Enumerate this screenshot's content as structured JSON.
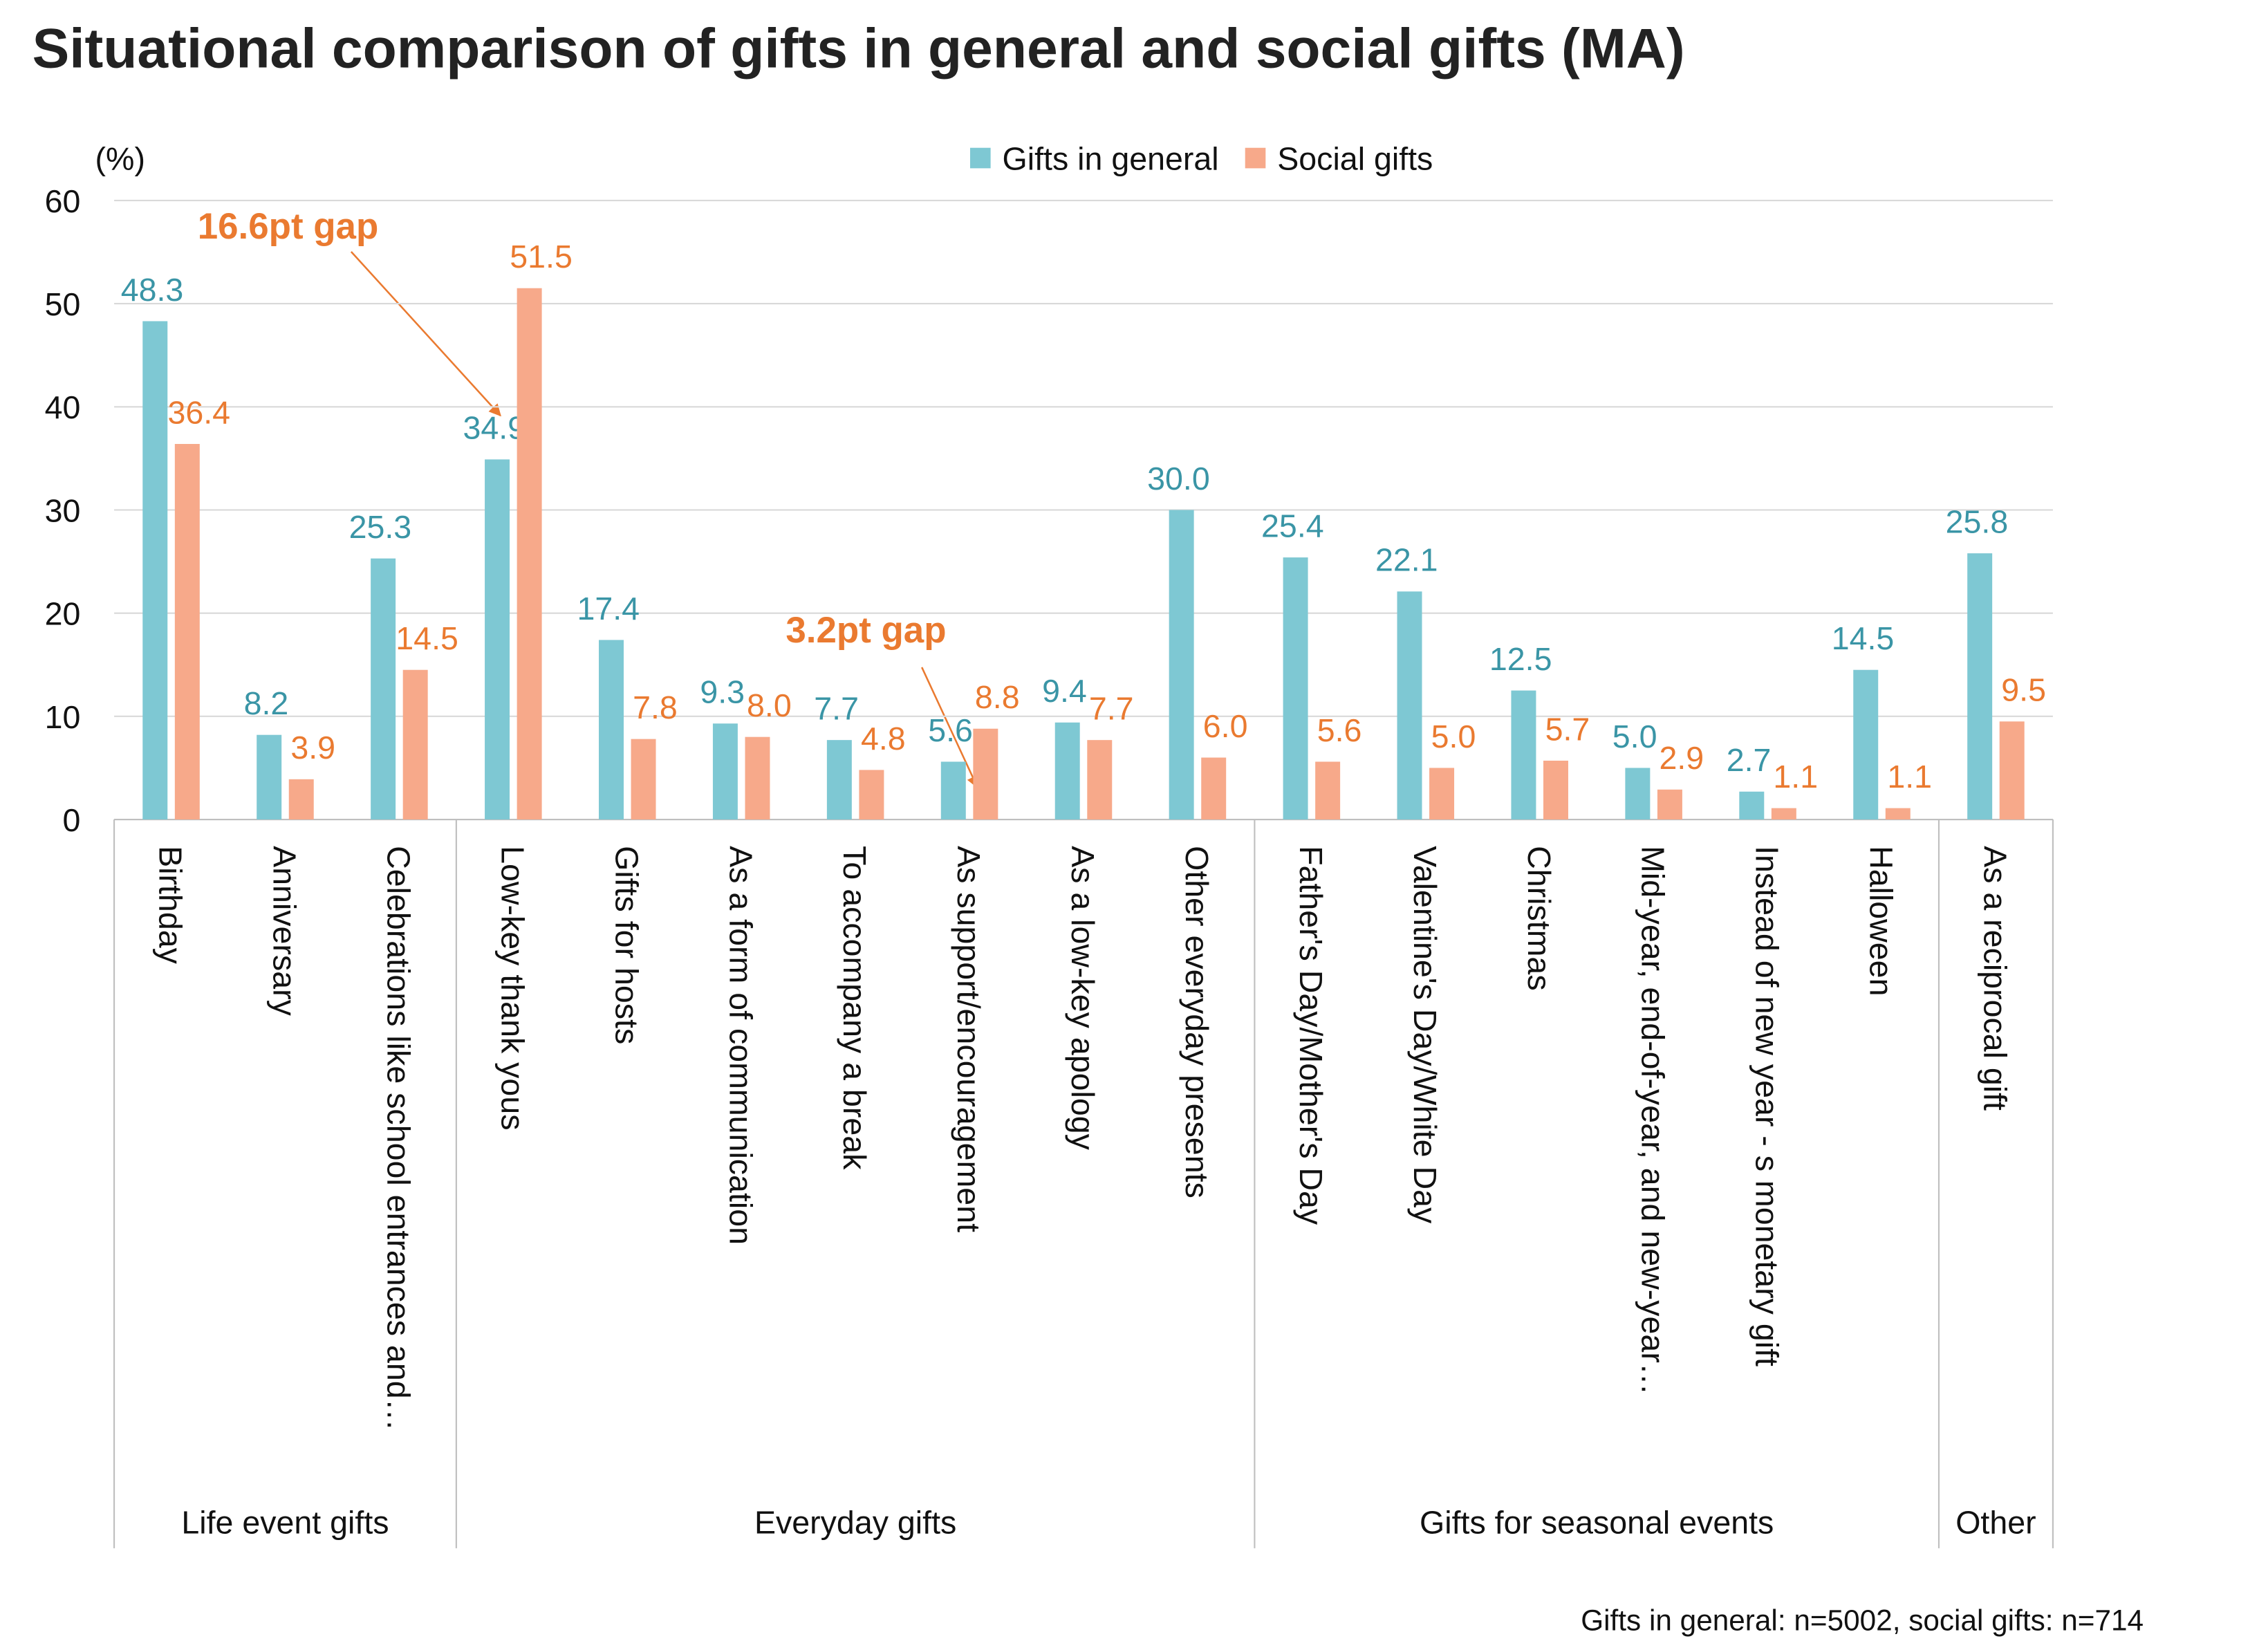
{
  "chart_data": {
    "type": "bar",
    "title": "Situational comparison of gifts in general and social gifts (MA)",
    "y_label": "(%)",
    "note": "Gifts in general: n=5002, social gifts: n=714",
    "annotations": [
      "16.6pt gap",
      "3.2pt gap"
    ],
    "categories": [
      "Birthday",
      "Anniversary",
      "Celebrations like school entrances and…",
      "Low-key thank yous",
      "Gifts for hosts",
      "As a form of communication",
      "To accompany a break",
      "As support/encouragement",
      "As a low-key apology",
      "Other everyday presents",
      "Father's Day/Mother's Day",
      "Valentine's Day/White Day",
      "Christmas",
      "Mid-year, end-of-year, and new-year…",
      "Instead of new year - s monetary gift",
      "Halloween",
      "As a reciprocal gift"
    ],
    "groups": [
      {
        "name": "Life event gifts",
        "span": 3
      },
      {
        "name": "Everyday gifts",
        "span": 7
      },
      {
        "name": "Gifts for seasonal events",
        "span": 6
      },
      {
        "name": "Other",
        "span": 1
      }
    ],
    "series": [
      {
        "name": "Gifts in general",
        "color": "#7ec8d3",
        "label_color": "#3a95a6",
        "values": [
          48.3,
          8.2,
          25.3,
          34.9,
          17.4,
          9.3,
          7.7,
          5.6,
          9.4,
          30.0,
          25.4,
          22.1,
          12.5,
          5.0,
          2.7,
          14.5,
          25.8
        ],
        "value_labels": [
          "48.3",
          "8.2",
          "25.3",
          "34.9",
          "17.4",
          "9.3",
          "7.7",
          "5.6",
          "9.4",
          "30.0",
          "25.4",
          "22.1",
          "12.5",
          "5.0",
          "2.7",
          "14.5",
          "25.8"
        ]
      },
      {
        "name": "Social gifts",
        "color": "#f7a98a",
        "label_color": "#ea7a30",
        "values": [
          36.4,
          3.9,
          14.5,
          51.5,
          7.8,
          8.0,
          4.8,
          8.8,
          7.7,
          6.0,
          5.6,
          5.0,
          5.7,
          2.9,
          1.1,
          1.1,
          9.5
        ],
        "value_labels": [
          "36.4",
          "3.9",
          "14.5",
          "51.5",
          "7.8",
          "8.0",
          "4.8",
          "8.8",
          "7.7",
          "6.0",
          "5.6",
          "5.0",
          "5.7",
          "2.9",
          "1.1",
          "1.1",
          "9.5"
        ]
      }
    ],
    "ylim": [
      0,
      60
    ],
    "yticks": [
      0,
      10,
      20,
      30,
      40,
      50,
      60
    ],
    "grid": true,
    "legend": "top"
  }
}
